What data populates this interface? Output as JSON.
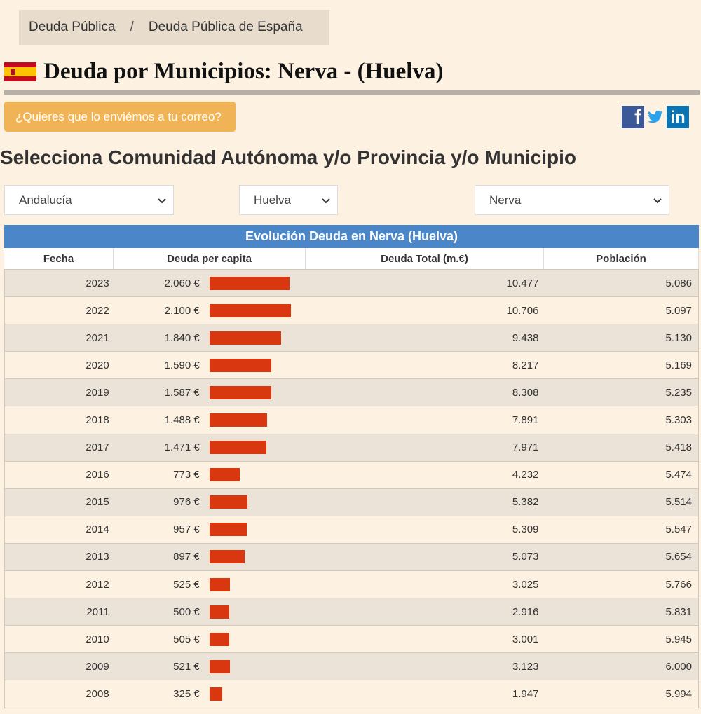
{
  "breadcrumb": {
    "item1": "Deuda Pública",
    "separator": "/",
    "item2": "Deuda Pública de España"
  },
  "title": "Deuda por Municipios: Nerva - (Huelva)",
  "email_button": "¿Quieres que lo enviémos a tu correo?",
  "social": {
    "facebook_glyph": "f",
    "linkedin_glyph": "in"
  },
  "select_heading": "Selecciona Comunidad Autónoma y/o Provincia y/o Municipio",
  "selects": {
    "comunidad": "Andalucía",
    "provincia": "Huelva",
    "municipio": "Nerva"
  },
  "table": {
    "title": "Evolución Deuda en Nerva (Huelva)",
    "headers": {
      "fecha": "Fecha",
      "per_capita": "Deuda per capita",
      "total": "Deuda Total (m.€)",
      "poblacion": "Población"
    },
    "rows": [
      {
        "fecha": "2023",
        "per_capita": "2.060 €",
        "pc_value": 2060,
        "total": "10.477",
        "poblacion": "5.086"
      },
      {
        "fecha": "2022",
        "per_capita": "2.100 €",
        "pc_value": 2100,
        "total": "10.706",
        "poblacion": "5.097"
      },
      {
        "fecha": "2021",
        "per_capita": "1.840 €",
        "pc_value": 1840,
        "total": "9.438",
        "poblacion": "5.130"
      },
      {
        "fecha": "2020",
        "per_capita": "1.590 €",
        "pc_value": 1590,
        "total": "8.217",
        "poblacion": "5.169"
      },
      {
        "fecha": "2019",
        "per_capita": "1.587 €",
        "pc_value": 1587,
        "total": "8.308",
        "poblacion": "5.235"
      },
      {
        "fecha": "2018",
        "per_capita": "1.488 €",
        "pc_value": 1488,
        "total": "7.891",
        "poblacion": "5.303"
      },
      {
        "fecha": "2017",
        "per_capita": "1.471 €",
        "pc_value": 1471,
        "total": "7.971",
        "poblacion": "5.418"
      },
      {
        "fecha": "2016",
        "per_capita": "773 €",
        "pc_value": 773,
        "total": "4.232",
        "poblacion": "5.474"
      },
      {
        "fecha": "2015",
        "per_capita": "976 €",
        "pc_value": 976,
        "total": "5.382",
        "poblacion": "5.514"
      },
      {
        "fecha": "2014",
        "per_capita": "957 €",
        "pc_value": 957,
        "total": "5.309",
        "poblacion": "5.547"
      },
      {
        "fecha": "2013",
        "per_capita": "897 €",
        "pc_value": 897,
        "total": "5.073",
        "poblacion": "5.654"
      },
      {
        "fecha": "2012",
        "per_capita": "525 €",
        "pc_value": 525,
        "total": "3.025",
        "poblacion": "5.766"
      },
      {
        "fecha": "2011",
        "per_capita": "500 €",
        "pc_value": 500,
        "total": "2.916",
        "poblacion": "5.831"
      },
      {
        "fecha": "2010",
        "per_capita": "505 €",
        "pc_value": 505,
        "total": "3.001",
        "poblacion": "5.945"
      },
      {
        "fecha": "2009",
        "per_capita": "521 €",
        "pc_value": 521,
        "total": "3.123",
        "poblacion": "6.000"
      },
      {
        "fecha": "2008",
        "per_capita": "325 €",
        "pc_value": 325,
        "total": "1.947",
        "poblacion": "5.994"
      }
    ]
  },
  "colors": {
    "bar": "#d9370f",
    "table_header": "#4a86c8",
    "email_button": "#f0b457",
    "background": "#fdf1e1"
  },
  "icons": {
    "flag": "spain-flag-icon",
    "facebook": "facebook-icon",
    "twitter": "twitter-icon",
    "linkedin": "linkedin-icon",
    "chevron": "chevron-down-icon"
  }
}
